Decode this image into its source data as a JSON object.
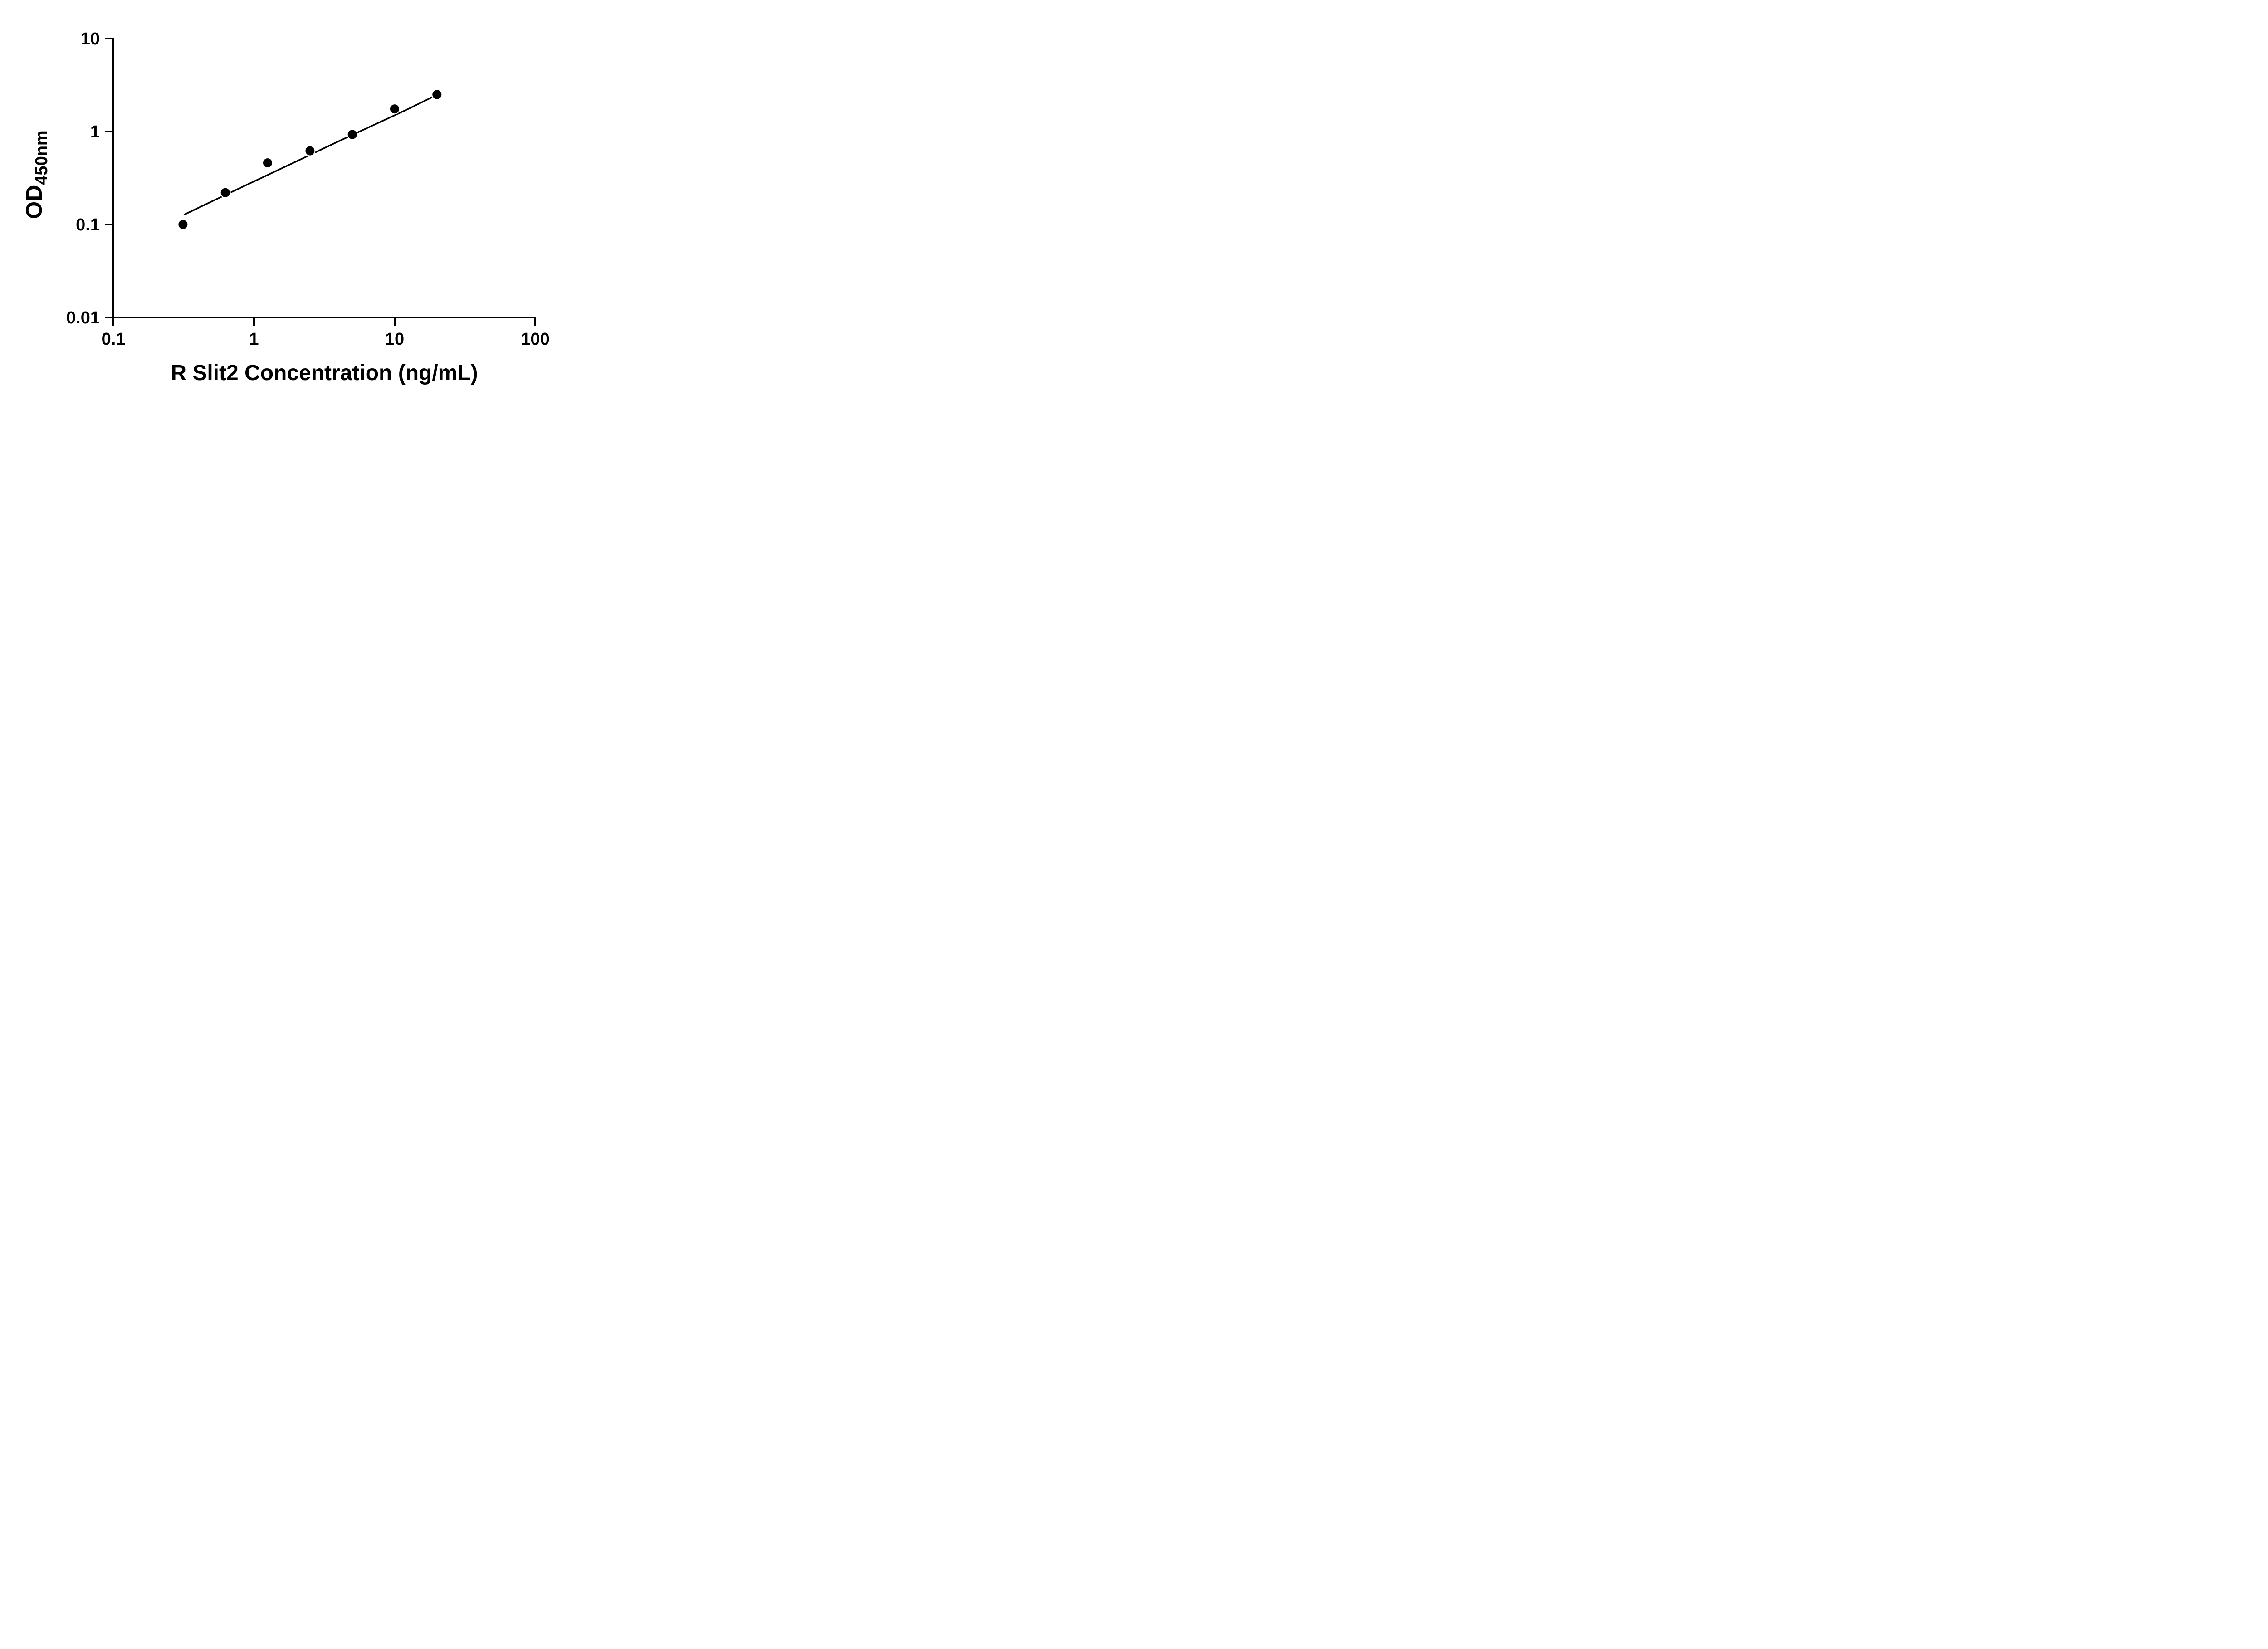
{
  "chart_data": {
    "type": "scatter",
    "title": "",
    "xlabel": "R Slit2 Concentration (ng/mL)",
    "ylabel_main": "OD",
    "ylabel_sub": "450nm",
    "x_scale": "log",
    "y_scale": "log",
    "xlim": [
      0.1,
      100
    ],
    "ylim": [
      0.01,
      10
    ],
    "grid": false,
    "legend": "none",
    "x_ticks": [
      {
        "value": 0.1,
        "label": "0.1"
      },
      {
        "value": 1,
        "label": "1"
      },
      {
        "value": 10,
        "label": "10"
      },
      {
        "value": 100,
        "label": "100"
      }
    ],
    "y_ticks": [
      {
        "value": 0.01,
        "label": "0.01"
      },
      {
        "value": 0.1,
        "label": "0.1"
      },
      {
        "value": 1,
        "label": "1"
      },
      {
        "value": 10,
        "label": "10"
      }
    ],
    "points": [
      {
        "x": 0.3125,
        "y": 0.1
      },
      {
        "x": 0.625,
        "y": 0.22
      },
      {
        "x": 1.25,
        "y": 0.46
      },
      {
        "x": 2.5,
        "y": 0.62
      },
      {
        "x": 5,
        "y": 0.93
      },
      {
        "x": 10,
        "y": 1.75
      },
      {
        "x": 20,
        "y": 2.5
      }
    ],
    "fit_curve": [
      [
        0.32,
        0.128
      ],
      [
        0.5,
        0.177
      ],
      [
        0.79,
        0.246
      ],
      [
        1.26,
        0.343
      ],
      [
        2.0,
        0.477
      ],
      [
        3.16,
        0.664
      ],
      [
        5.01,
        0.921
      ],
      [
        7.94,
        1.27
      ],
      [
        12.6,
        1.76
      ],
      [
        20.0,
        2.48
      ]
    ],
    "colors": {
      "points": "#000000",
      "line": "#000000",
      "axis": "#000000",
      "text": "#000000",
      "background": "#ffffff"
    },
    "marker": {
      "shape": "circle",
      "radius": 11
    }
  }
}
